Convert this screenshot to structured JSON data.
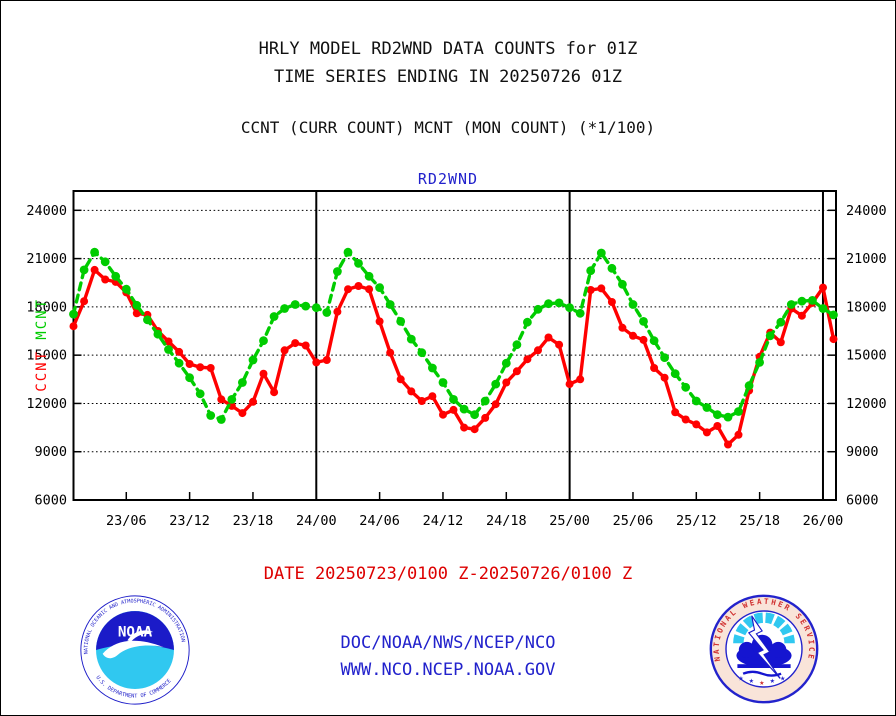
{
  "header": {
    "title_line1": "HRLY MODEL RD2WND DATA COUNTS for 01Z",
    "title_line2": "TIME SERIES ENDING IN 20250726 01Z",
    "subtitle": "CCNT (CURR COUNT) MCNT (MON COUNT) (*1/100)"
  },
  "chart_data": {
    "type": "line",
    "title": "RD2WND",
    "title_color": "#2222CC",
    "grid": true,
    "x_start_label": "23/01",
    "x_end_label": "26/01",
    "x_step_hours": 1,
    "ylim": [
      6000,
      25200
    ],
    "yticks": [
      24000,
      21000,
      18000,
      15000,
      12000,
      9000,
      6000
    ],
    "xticks": [
      {
        "label": "23/06",
        "hour": 5
      },
      {
        "label": "23/12",
        "hour": 11
      },
      {
        "label": "23/18",
        "hour": 17
      },
      {
        "label": "24/00",
        "hour": 23
      },
      {
        "label": "24/06",
        "hour": 29
      },
      {
        "label": "24/12",
        "hour": 35
      },
      {
        "label": "24/18",
        "hour": 41
      },
      {
        "label": "25/00",
        "hour": 47
      },
      {
        "label": "25/06",
        "hour": 53
      },
      {
        "label": "25/12",
        "hour": 59
      },
      {
        "label": "25/18",
        "hour": 65
      },
      {
        "label": "26/00",
        "hour": 71
      }
    ],
    "day_boundary_hours": [
      23,
      47,
      71
    ],
    "left_axis_series_labels": [
      {
        "text": "MCNT",
        "color": "#00CC00"
      },
      {
        "text": "CCNT",
        "color": "#FF0000"
      }
    ],
    "series": [
      {
        "name": "CCNT",
        "color": "#FF0000",
        "style": "solid",
        "values": [
          16800,
          18350,
          20300,
          19700,
          19550,
          18900,
          17600,
          17500,
          16500,
          15850,
          15200,
          14450,
          14250,
          14200,
          12250,
          11850,
          11400,
          12100,
          13850,
          12700,
          15300,
          15750,
          15600,
          14550,
          14700,
          17700,
          19100,
          19300,
          19100,
          17100,
          15150,
          13500,
          12750,
          12150,
          12450,
          11300,
          11600,
          10500,
          10400,
          11100,
          11950,
          13300,
          14000,
          14750,
          15300,
          16100,
          15650,
          13200,
          13500,
          19050,
          19150,
          18300,
          16700,
          16200,
          15950,
          14200,
          13600,
          11450,
          11000,
          10700,
          10200,
          10600,
          9450,
          10050,
          12800,
          14900,
          16400,
          15800,
          17900,
          17450,
          18250,
          19200,
          16000
        ]
      },
      {
        "name": "MCNT",
        "color": "#00CC00",
        "style": "dashed",
        "values": [
          17550,
          20300,
          21400,
          20800,
          19900,
          19100,
          18100,
          17200,
          16300,
          15350,
          14500,
          13600,
          12600,
          11250,
          11000,
          12250,
          13300,
          14700,
          15900,
          17400,
          17900,
          18150,
          18050,
          17950,
          17650,
          20200,
          21400,
          20700,
          19900,
          19200,
          18150,
          17100,
          16000,
          15150,
          14200,
          13300,
          12250,
          11650,
          11300,
          12150,
          13200,
          14500,
          15650,
          17050,
          17850,
          18200,
          18250,
          17950,
          17600,
          20250,
          21350,
          20400,
          19400,
          18150,
          17100,
          15900,
          14850,
          13850,
          13000,
          12150,
          11750,
          11300,
          11150,
          11500,
          13100,
          14550,
          16200,
          17050,
          18150,
          18350,
          18400,
          17900,
          17500
        ]
      }
    ]
  },
  "footer": {
    "date_range": "DATE 20250723/0100 Z-20250726/0100 Z",
    "date_color": "#DD0000",
    "link_line1": "DOC/NOAA/NWS/NCEP/NCO",
    "link_line2": "WWW.NCO.NCEP.NOAA.GOV",
    "link_color": "#2222CC"
  },
  "logos": {
    "noaa": {
      "ring_top": "NATIONAL OCEANIC AND ATMOSPHERIC ADMINISTRATION",
      "ring_bottom": "U.S. DEPARTMENT OF COMMERCE",
      "wordmark": "NOAA"
    },
    "nws": {
      "ring_text": "NATIONAL WEATHER SERVICE"
    }
  }
}
